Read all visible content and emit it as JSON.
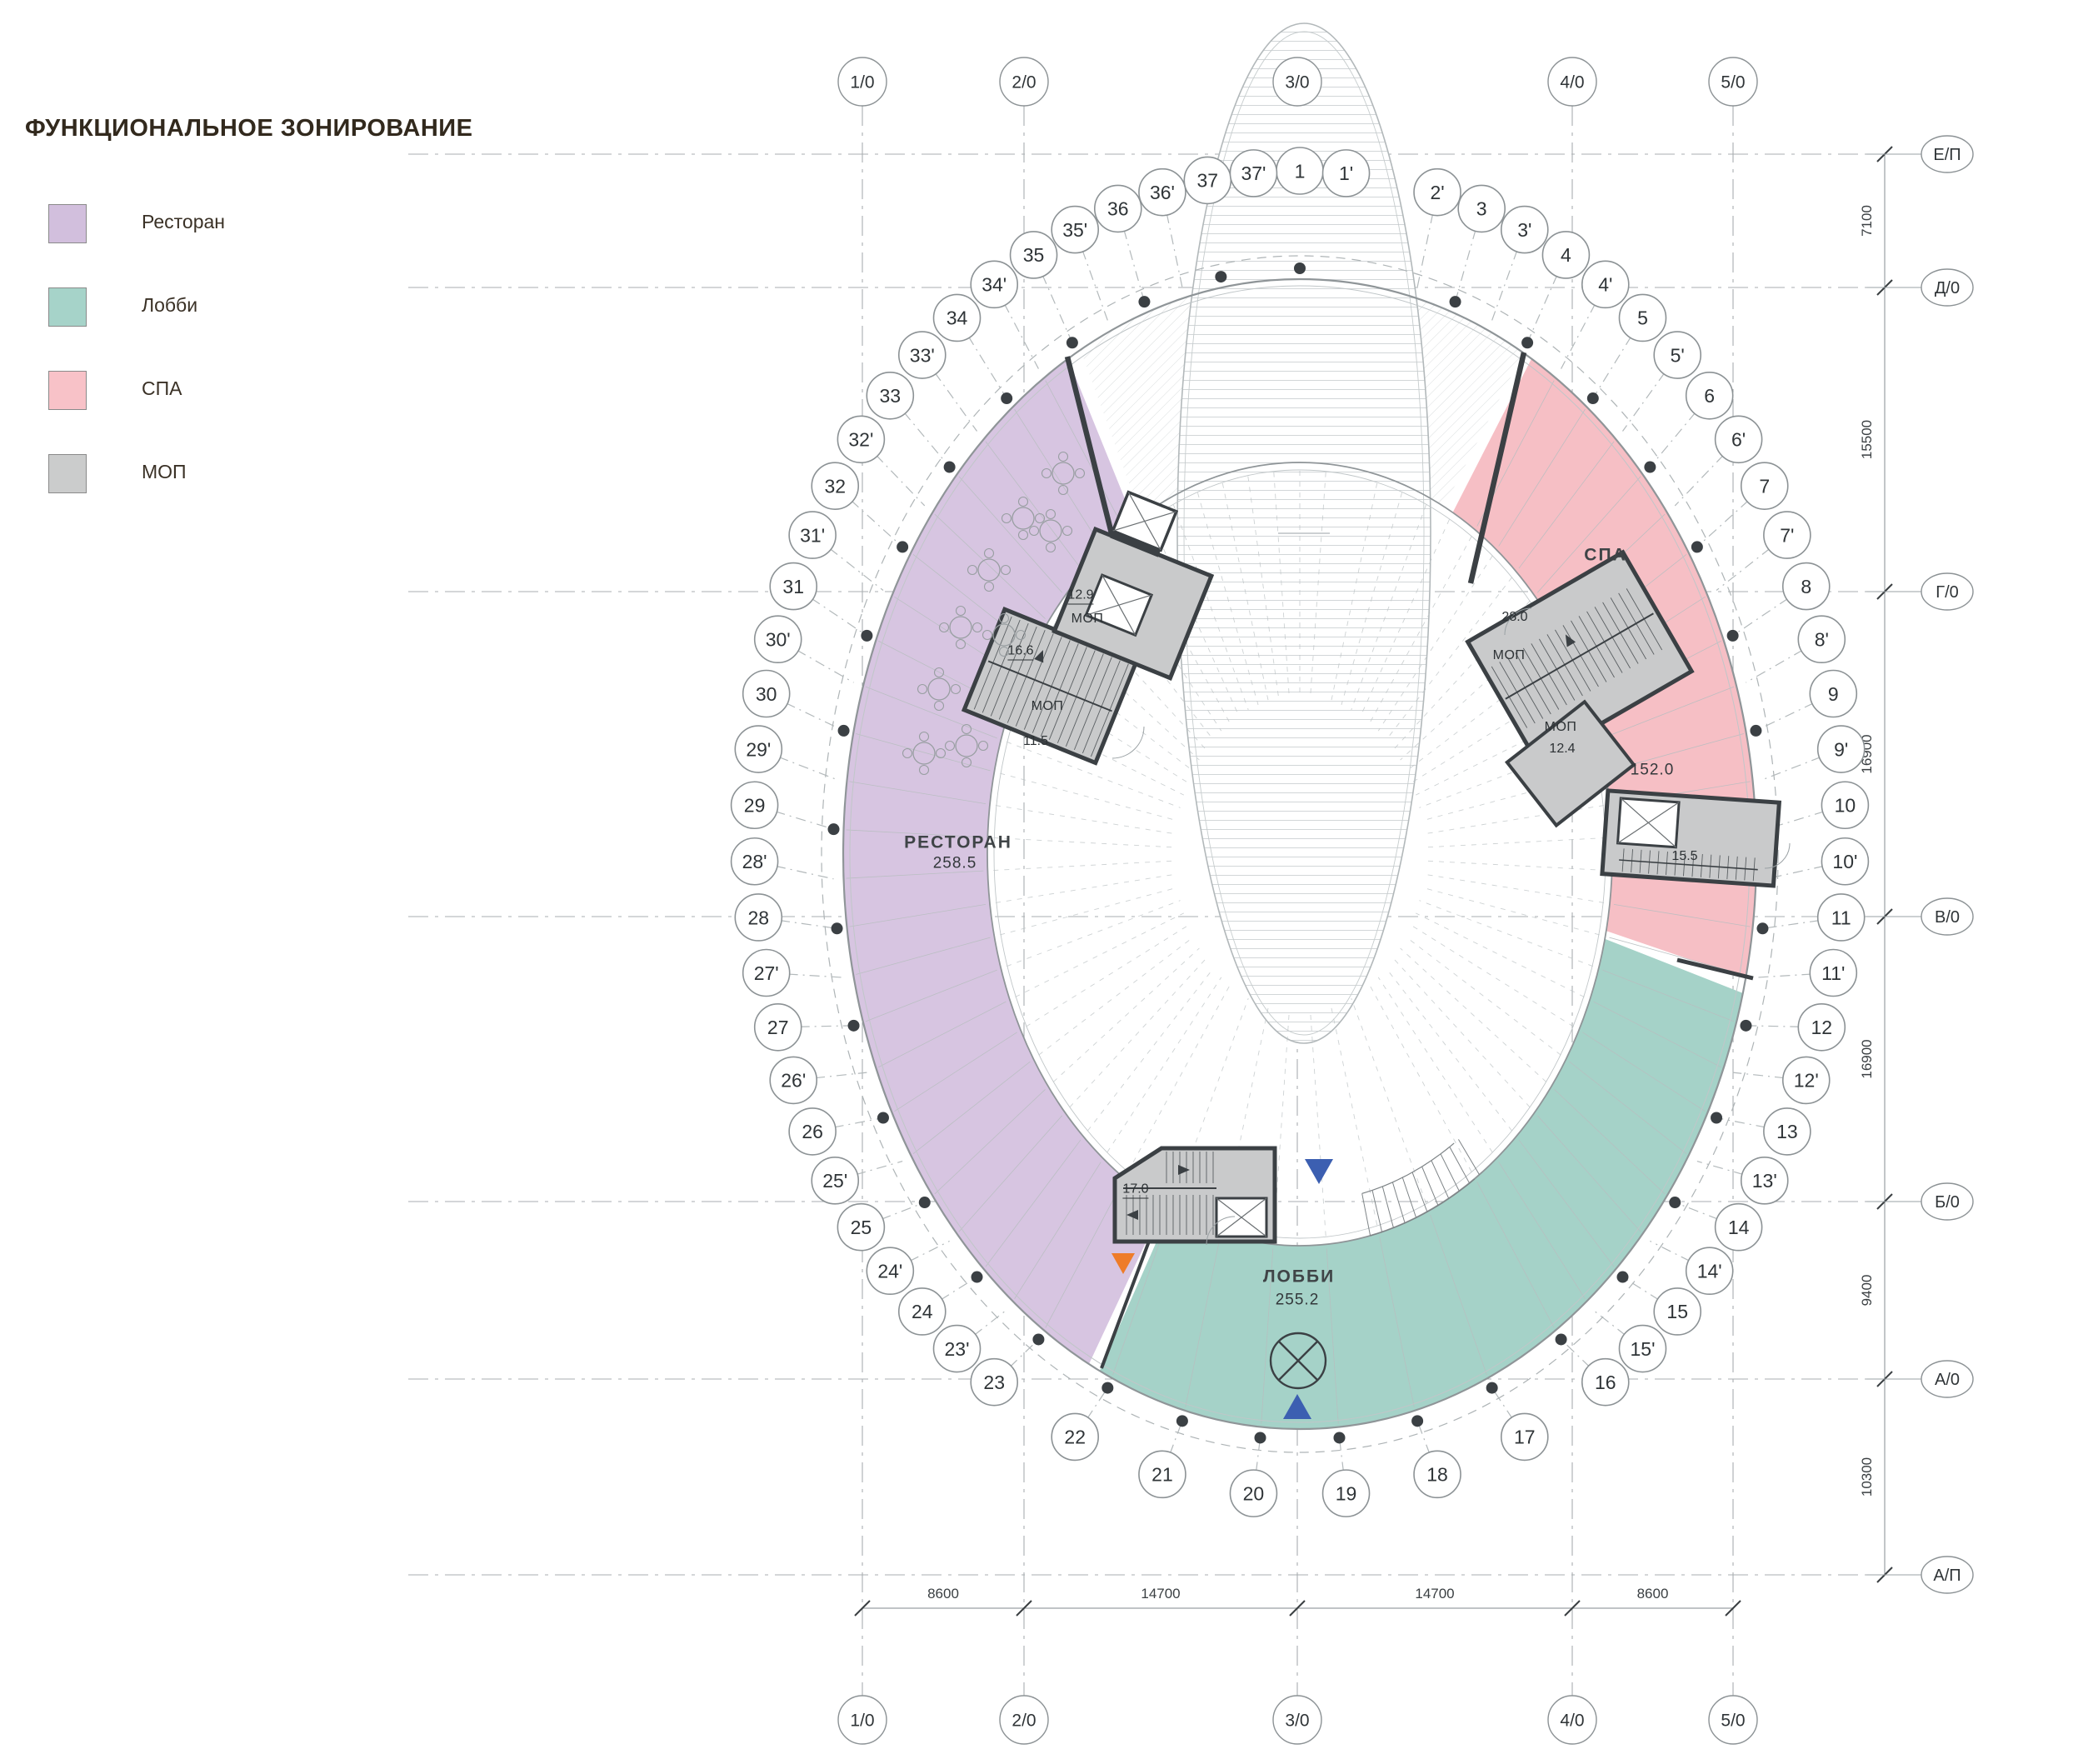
{
  "legend": {
    "title": "ФУНКЦИОНАЛЬНОЕ ЗОНИРОВАНИЕ",
    "items": [
      {
        "label": "Ресторан",
        "color": "#d2bfdd"
      },
      {
        "label": "Лобби",
        "color": "#a6d3c9"
      },
      {
        "label": "СПА",
        "color": "#f8c2c8"
      },
      {
        "label": "МОП",
        "color": "#cbcccc"
      }
    ]
  },
  "grid": {
    "column_axes": [
      "1/0",
      "2/0",
      "3/0",
      "4/0",
      "5/0"
    ],
    "row_axes": [
      "Е/П",
      "Д/0",
      "Г/0",
      "В/0",
      "Б/0",
      "А/0",
      "А/П"
    ],
    "bottom_dimensions": [
      "8600",
      "14700",
      "14700",
      "8600"
    ],
    "right_dimensions": [
      "7100",
      "15500",
      "16900",
      "16900",
      "9400",
      "10300"
    ]
  },
  "radial_axes": [
    "1",
    "1'",
    "2'",
    "3",
    "3'",
    "4",
    "4'",
    "5",
    "5'",
    "6",
    "6'",
    "7",
    "7'",
    "8",
    "8'",
    "9",
    "9'",
    "10",
    "10'",
    "11",
    "11'",
    "12",
    "12'",
    "13",
    "13'",
    "14",
    "14'",
    "15",
    "15'",
    "16",
    "17",
    "18",
    "19",
    "20",
    "21",
    "22",
    "23",
    "23'",
    "24",
    "24'",
    "25",
    "25'",
    "26",
    "26'",
    "27",
    "27'",
    "28",
    "28'",
    "29",
    "29'",
    "30",
    "30'",
    "31",
    "31'",
    "32",
    "32'",
    "33",
    "33'",
    "34",
    "34'",
    "35",
    "35'",
    "36",
    "36'",
    "37",
    "37'"
  ],
  "zones": {
    "restaurant": {
      "label": "РЕСТОРАН",
      "area": "258.5"
    },
    "lobby": {
      "label": "ЛОББИ",
      "area": "255.2"
    },
    "spa": {
      "label": "СПА",
      "area": "152.0"
    }
  },
  "rooms": {
    "mop_label": "МОП",
    "core_a_upper_area": "12.9",
    "core_a_stair_area": "16.6",
    "core_a_lower_area": "11.5",
    "core_b_area": "28.0",
    "core_b_lower_area": "12.4",
    "core_c_area": "15.5",
    "core_d_area": "17.0"
  },
  "palette": {
    "restaurant": "#d7c5e1",
    "lobby": "#a5d2c8",
    "spa": "#f6bfc5",
    "mop": "#c9cacb",
    "wall": "#3b4044",
    "line": "#8f9598",
    "line_light": "#b8bec0",
    "text": "#2f3437",
    "entrance_marker": "#3c5fb1",
    "service_marker": "#ee7c29"
  }
}
